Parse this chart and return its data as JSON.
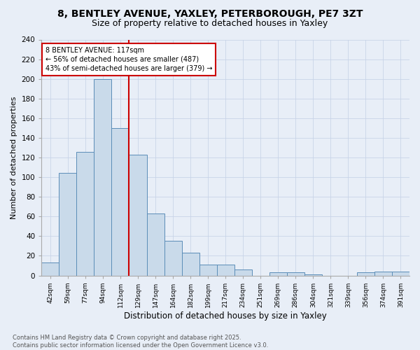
{
  "title1": "8, BENTLEY AVENUE, YAXLEY, PETERBOROUGH, PE7 3ZT",
  "title2": "Size of property relative to detached houses in Yaxley",
  "xlabel": "Distribution of detached houses by size in Yaxley",
  "ylabel": "Number of detached properties",
  "categories": [
    "42sqm",
    "59sqm",
    "77sqm",
    "94sqm",
    "112sqm",
    "129sqm",
    "147sqm",
    "164sqm",
    "182sqm",
    "199sqm",
    "217sqm",
    "234sqm",
    "251sqm",
    "269sqm",
    "286sqm",
    "304sqm",
    "321sqm",
    "339sqm",
    "356sqm",
    "374sqm",
    "391sqm"
  ],
  "values": [
    13,
    104,
    126,
    200,
    150,
    123,
    63,
    35,
    23,
    11,
    11,
    6,
    0,
    3,
    3,
    1,
    0,
    0,
    3,
    4,
    4
  ],
  "bar_color": "#c9daea",
  "bar_edge_color": "#5b8db8",
  "vline_x": 4.5,
  "vline_color": "#cc0000",
  "annotation_text": "8 BENTLEY AVENUE: 117sqm\n← 56% of detached houses are smaller (487)\n43% of semi-detached houses are larger (379) →",
  "annotation_box_color": "#ffffff",
  "annotation_box_edge": "#cc0000",
  "ylim": [
    0,
    240
  ],
  "yticks": [
    0,
    20,
    40,
    60,
    80,
    100,
    120,
    140,
    160,
    180,
    200,
    220,
    240
  ],
  "footer": "Contains HM Land Registry data © Crown copyright and database right 2025.\nContains public sector information licensed under the Open Government Licence v3.0.",
  "bg_color": "#e8eef7",
  "grid_color": "#c8d4e8",
  "title1_fontsize": 10,
  "title2_fontsize": 9
}
